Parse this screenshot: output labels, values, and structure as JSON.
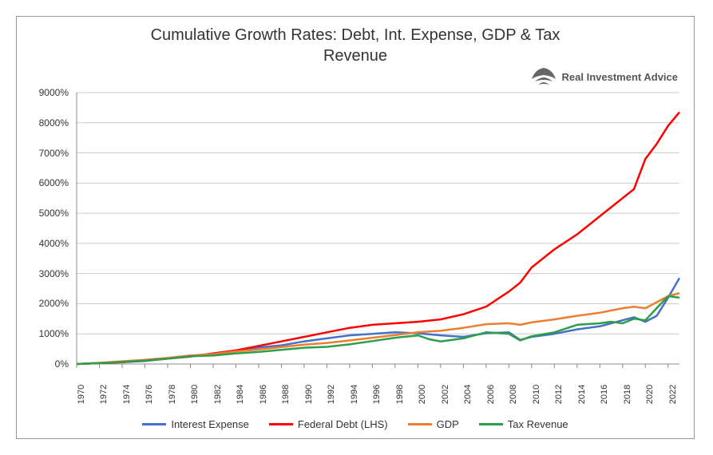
{
  "chart": {
    "type": "line",
    "title": "Cumulative Growth Rates: Debt, Int. Expense, GDP & Tax\nRevenue",
    "title_fontsize": 20,
    "branding_text": "Real Investment Advice",
    "branding_fontsize": 13,
    "background_color": "#ffffff",
    "border_color": "#999999",
    "grid_color": "#cccccc",
    "axis_line_color": "#888888",
    "ylim": [
      0,
      9000
    ],
    "ytick_step": 1000,
    "ytick_format_suffix": "%",
    "y_labels": [
      "0%",
      "1000%",
      "2000%",
      "3000%",
      "4000%",
      "5000%",
      "6000%",
      "7000%",
      "8000%",
      "9000%"
    ],
    "xlim": [
      1970,
      2023
    ],
    "xtick_step": 2,
    "x_labels": [
      "1970",
      "1972",
      "1974",
      "1976",
      "1978",
      "1980",
      "1982",
      "1984",
      "1986",
      "1988",
      "1990",
      "1992",
      "1994",
      "1996",
      "1998",
      "2000",
      "2002",
      "2004",
      "2006",
      "2008",
      "2010",
      "2012",
      "2014",
      "2016",
      "2018",
      "2020",
      "2022"
    ],
    "label_fontsize": 12,
    "line_width": 2.5,
    "series": [
      {
        "name": "Interest Expense",
        "color": "#4472c4",
        "data": [
          [
            1970,
            0
          ],
          [
            1972,
            30
          ],
          [
            1974,
            60
          ],
          [
            1976,
            100
          ],
          [
            1978,
            180
          ],
          [
            1980,
            250
          ],
          [
            1982,
            350
          ],
          [
            1984,
            450
          ],
          [
            1986,
            550
          ],
          [
            1988,
            620
          ],
          [
            1990,
            750
          ],
          [
            1992,
            850
          ],
          [
            1994,
            950
          ],
          [
            1996,
            1000
          ],
          [
            1998,
            1050
          ],
          [
            2000,
            1020
          ],
          [
            2002,
            950
          ],
          [
            2004,
            900
          ],
          [
            2006,
            1020
          ],
          [
            2008,
            1050
          ],
          [
            2009,
            800
          ],
          [
            2010,
            900
          ],
          [
            2012,
            1000
          ],
          [
            2014,
            1150
          ],
          [
            2016,
            1250
          ],
          [
            2018,
            1450
          ],
          [
            2019,
            1550
          ],
          [
            2020,
            1400
          ],
          [
            2021,
            1600
          ],
          [
            2022,
            2200
          ],
          [
            2023,
            2850
          ]
        ]
      },
      {
        "name": "Federal Debt (LHS)",
        "color": "#ff0000",
        "data": [
          [
            1970,
            0
          ],
          [
            1972,
            30
          ],
          [
            1974,
            60
          ],
          [
            1976,
            120
          ],
          [
            1978,
            180
          ],
          [
            1980,
            250
          ],
          [
            1982,
            350
          ],
          [
            1984,
            450
          ],
          [
            1986,
            600
          ],
          [
            1988,
            750
          ],
          [
            1990,
            900
          ],
          [
            1992,
            1050
          ],
          [
            1994,
            1200
          ],
          [
            1996,
            1300
          ],
          [
            1998,
            1350
          ],
          [
            2000,
            1400
          ],
          [
            2002,
            1480
          ],
          [
            2004,
            1650
          ],
          [
            2006,
            1900
          ],
          [
            2008,
            2400
          ],
          [
            2009,
            2700
          ],
          [
            2010,
            3200
          ],
          [
            2012,
            3800
          ],
          [
            2014,
            4300
          ],
          [
            2016,
            4900
          ],
          [
            2018,
            5500
          ],
          [
            2019,
            5800
          ],
          [
            2020,
            6800
          ],
          [
            2021,
            7300
          ],
          [
            2022,
            7900
          ],
          [
            2023,
            8350
          ]
        ]
      },
      {
        "name": "GDP",
        "color": "#ed7d31",
        "data": [
          [
            1970,
            0
          ],
          [
            1972,
            40
          ],
          [
            1974,
            90
          ],
          [
            1976,
            140
          ],
          [
            1978,
            200
          ],
          [
            1980,
            280
          ],
          [
            1982,
            330
          ],
          [
            1984,
            420
          ],
          [
            1986,
            480
          ],
          [
            1988,
            560
          ],
          [
            1990,
            640
          ],
          [
            1992,
            700
          ],
          [
            1994,
            780
          ],
          [
            1996,
            870
          ],
          [
            1998,
            960
          ],
          [
            2000,
            1050
          ],
          [
            2002,
            1100
          ],
          [
            2004,
            1200
          ],
          [
            2006,
            1320
          ],
          [
            2008,
            1350
          ],
          [
            2009,
            1300
          ],
          [
            2010,
            1380
          ],
          [
            2012,
            1480
          ],
          [
            2014,
            1600
          ],
          [
            2016,
            1700
          ],
          [
            2018,
            1850
          ],
          [
            2019,
            1900
          ],
          [
            2020,
            1850
          ],
          [
            2021,
            2050
          ],
          [
            2022,
            2250
          ],
          [
            2023,
            2350
          ]
        ]
      },
      {
        "name": "Tax Revenue",
        "color": "#2e9e4a",
        "data": [
          [
            1970,
            0
          ],
          [
            1972,
            30
          ],
          [
            1974,
            70
          ],
          [
            1976,
            110
          ],
          [
            1978,
            180
          ],
          [
            1980,
            260
          ],
          [
            1982,
            280
          ],
          [
            1984,
            350
          ],
          [
            1986,
            400
          ],
          [
            1988,
            470
          ],
          [
            1990,
            540
          ],
          [
            1992,
            570
          ],
          [
            1994,
            650
          ],
          [
            1996,
            760
          ],
          [
            1998,
            870
          ],
          [
            2000,
            950
          ],
          [
            2001,
            820
          ],
          [
            2002,
            750
          ],
          [
            2004,
            850
          ],
          [
            2006,
            1050
          ],
          [
            2008,
            1000
          ],
          [
            2009,
            780
          ],
          [
            2010,
            920
          ],
          [
            2012,
            1050
          ],
          [
            2014,
            1300
          ],
          [
            2016,
            1350
          ],
          [
            2017,
            1400
          ],
          [
            2018,
            1350
          ],
          [
            2019,
            1500
          ],
          [
            2020,
            1450
          ],
          [
            2021,
            1850
          ],
          [
            2022,
            2250
          ],
          [
            2023,
            2200
          ]
        ]
      }
    ],
    "legend_position": "bottom"
  }
}
